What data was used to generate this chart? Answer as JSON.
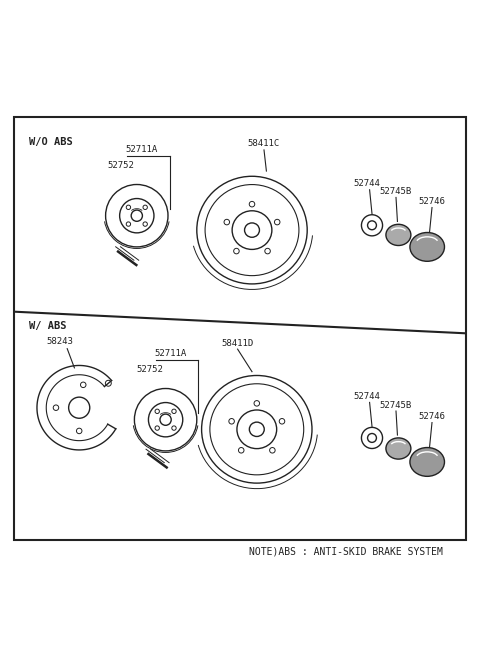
{
  "bg_color": "#ffffff",
  "border_color": "#222222",
  "line_color": "#222222",
  "title_note": "NOTE)ABS : ANTI-SKID BRAKE SYSTEM",
  "section1_label": "W/O ABS",
  "section2_label": "W/ ABS",
  "figsize": [
    4.8,
    6.57
  ],
  "dpi": 100
}
